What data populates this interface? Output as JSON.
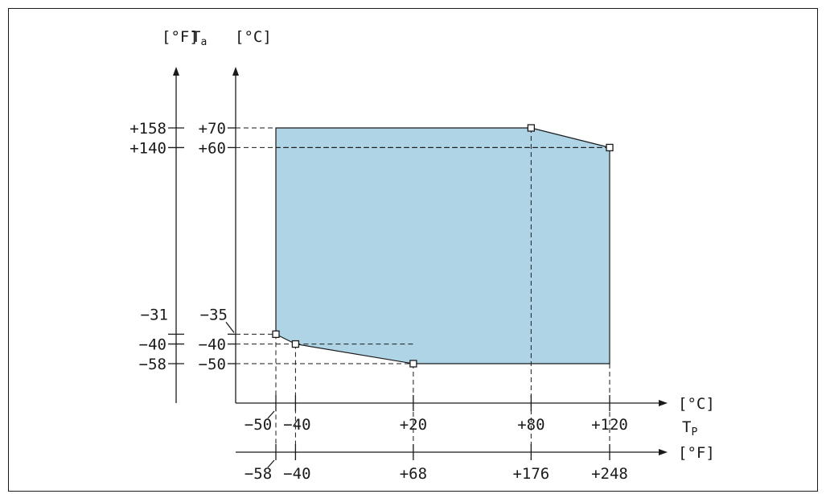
{
  "chart_data": {
    "type": "area",
    "title": "",
    "x_axis": {
      "label": "T",
      "label_subscript": "P",
      "unit_c": "[°C]",
      "unit_f": "[°F]",
      "ticks_c": [
        "−50",
        "−40",
        "+20",
        "+80",
        "+120"
      ],
      "ticks_f": [
        "−58",
        "−40",
        "+68",
        "+176",
        "+248"
      ],
      "tick_values_c": [
        -50,
        -40,
        20,
        80,
        120
      ]
    },
    "y_axis": {
      "label": "T",
      "label_subscript": "a",
      "unit_c": "[°C]",
      "unit_f": "[°F]",
      "ticks_c": [
        "+70",
        "+60",
        "−35",
        "−40",
        "−50"
      ],
      "ticks_f": [
        "+158",
        "+140",
        "−31",
        "−40",
        "−58"
      ],
      "tick_values_c": [
        70,
        60,
        -35,
        -40,
        -50
      ]
    },
    "series": [
      {
        "x": [
          -50,
          80,
          120,
          120,
          20,
          -40,
          -50
        ],
        "y": [
          70,
          70,
          60,
          -50,
          -50,
          -40,
          -35
        ]
      }
    ],
    "marked_points": [
      {
        "x": 80,
        "y": 70
      },
      {
        "x": 120,
        "y": 60
      },
      {
        "x": -50,
        "y": -35
      },
      {
        "x": -40,
        "y": -40
      },
      {
        "x": 20,
        "y": -50
      }
    ],
    "fill_color": "#aed4e6",
    "line_color": "#1a1a1a"
  }
}
